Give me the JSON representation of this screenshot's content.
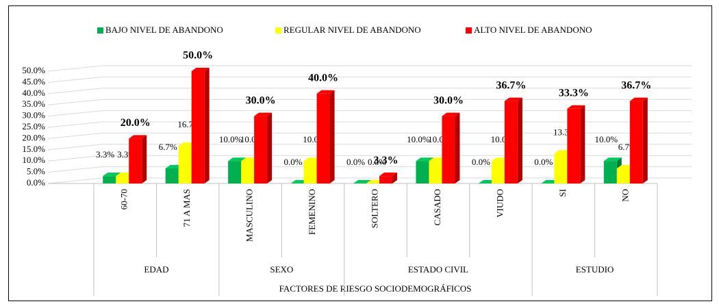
{
  "chart_data": {
    "type": "bar3d",
    "x_label": "FACTORES DE RIESGO SOCIODEMOGRÁFICOS",
    "category_groups": [
      {
        "name": "EDAD",
        "categories": [
          "60-70",
          "71 A MAS"
        ]
      },
      {
        "name": "SEXO",
        "categories": [
          "MASCULINO",
          "FEMENINO"
        ]
      },
      {
        "name": "ESTADO CIVIL",
        "categories": [
          "SOLTERO",
          "CASADO",
          "VIUDO"
        ]
      },
      {
        "name": "ESTUDIO",
        "categories": [
          "SI",
          "NO"
        ]
      }
    ],
    "series": [
      {
        "name": "BAJO NIVEL DE ABANDONO",
        "color": "#00b050",
        "values": [
          3.3,
          6.7,
          10.0,
          0.0,
          0.0,
          10.0,
          0.0,
          0.0,
          10.0
        ],
        "value_labels": [
          "3.3%",
          "6.7%",
          "10.0%",
          "0.0%",
          "0.0%",
          "10.0%",
          "0.0%",
          "0.0%",
          "10.0%"
        ]
      },
      {
        "name": "REGULAR NIVEL DE ABANDONO",
        "color": "#ffff00",
        "values": [
          3.3,
          16.7,
          10.0,
          10.0,
          0.0,
          10.0,
          10.0,
          13.3,
          6.7
        ],
        "value_labels": [
          "3.3%",
          "16.7%",
          "10.0%",
          "10.0%",
          "0.0%",
          "10.0%",
          "10.0%",
          "13.3%",
          "6.7%"
        ]
      },
      {
        "name": "ALTO NIVEL DE ABANDONO",
        "color": "#ff0000",
        "values": [
          20.0,
          50.0,
          30.0,
          40.0,
          3.3,
          30.0,
          36.7,
          33.3,
          36.7
        ],
        "value_labels": [
          "20.0%",
          "50.0%",
          "30.0%",
          "40.0%",
          "3.3%",
          "30.0%",
          "36.7%",
          "33.3%",
          "36.7%"
        ]
      }
    ],
    "ylim": [
      0,
      50
    ],
    "yticks": [
      {
        "value": 0,
        "label": "0.0%"
      },
      {
        "value": 5,
        "label": "5.0%"
      },
      {
        "value": 10,
        "label": "10.0%"
      },
      {
        "value": 15,
        "label": "15.0%"
      },
      {
        "value": 20,
        "label": "20.0%"
      },
      {
        "value": 25,
        "label": "25.0%"
      },
      {
        "value": 30,
        "label": "30.0%"
      },
      {
        "value": 35,
        "label": "35.0%"
      },
      {
        "value": 40,
        "label": "40.0%"
      },
      {
        "value": 45,
        "label": "45.0%"
      },
      {
        "value": 50,
        "label": "50.0%"
      }
    ],
    "grid": true,
    "legend": "top"
  }
}
